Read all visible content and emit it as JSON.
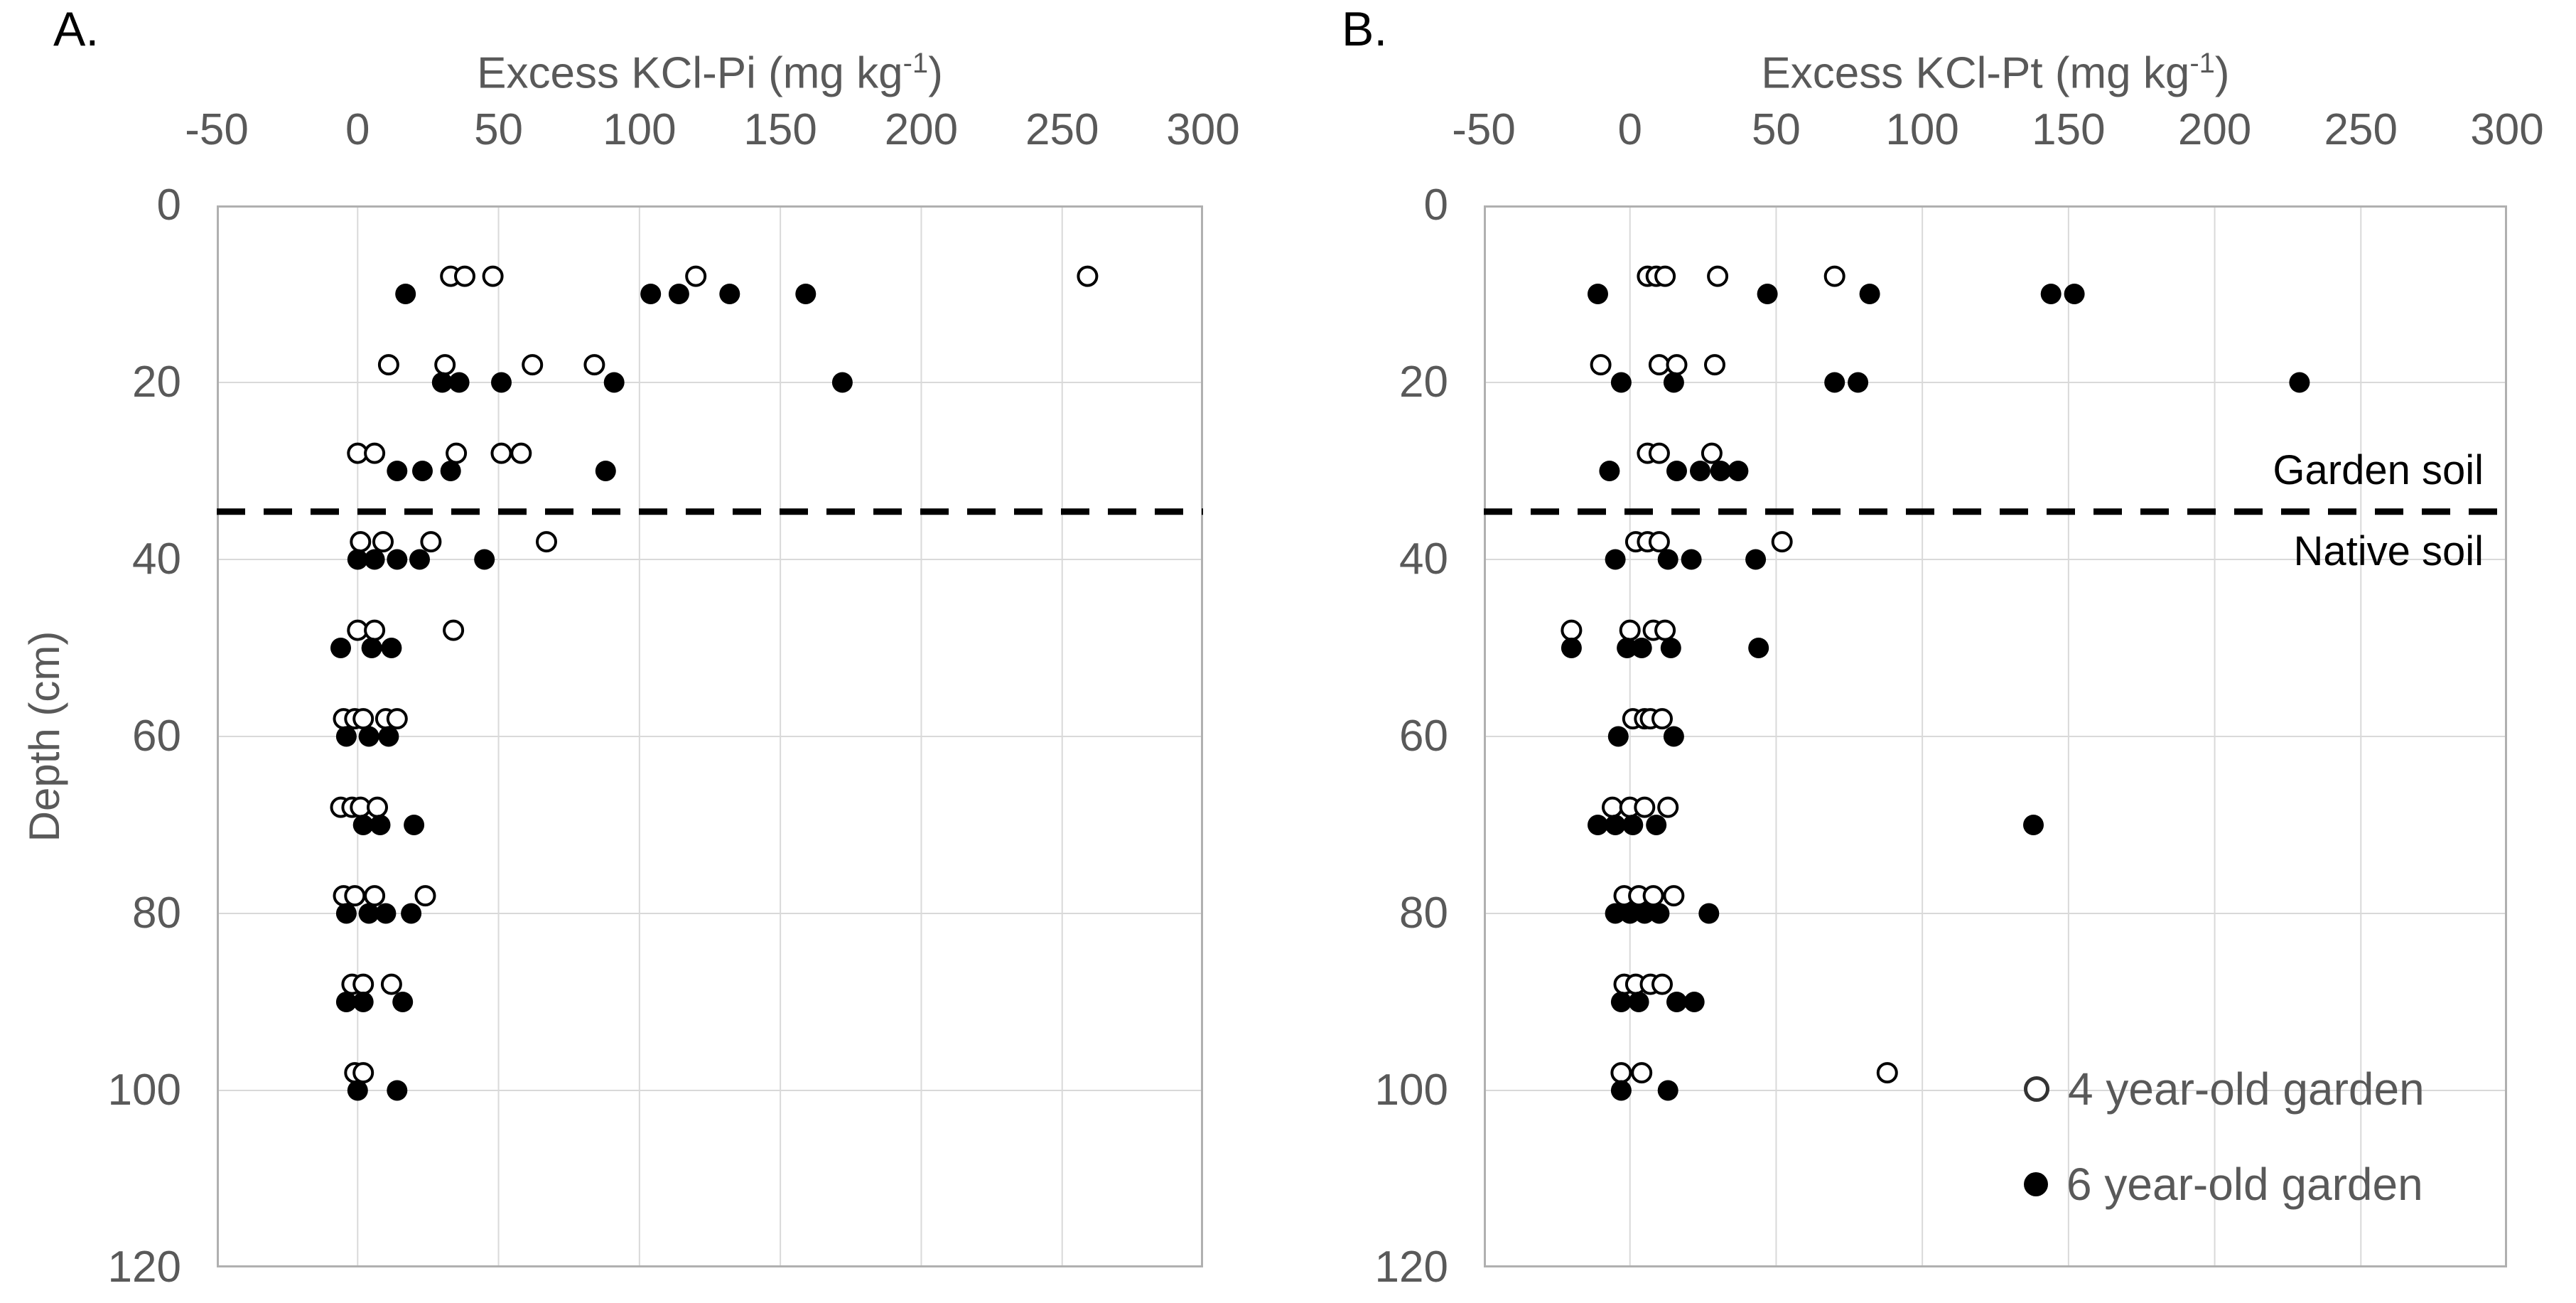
{
  "figure_type": "two-panel depth-profile scatter plot",
  "colors": {
    "background": "#ffffff",
    "text_gray": "#595959",
    "text_black": "#000000",
    "gridline": "#d9d9d9",
    "plot_border": "#b0b0b0",
    "marker": "#000000",
    "boundary_line": "#000000"
  },
  "y_axis_label": "Depth (cm)",
  "panels": [
    {
      "letter": "A.",
      "title_text": "Excess KCl-Pi (mg kg",
      "title_sup": "-1",
      "title_close": ")"
    },
    {
      "letter": "B.",
      "title_text": "Excess KCl-Pt (mg kg",
      "title_sup": "-1",
      "title_close": ")"
    }
  ],
  "boundary_labels": {
    "above": "Garden soil",
    "below": "Native soil"
  },
  "legend": {
    "items": [
      {
        "label": "4 year-old garden",
        "marker": "open"
      },
      {
        "label": "6 year-old garden",
        "marker": "filled"
      }
    ]
  },
  "chart_data": [
    {
      "type": "scatter",
      "panel": "A",
      "title": "Excess KCl-Pi (mg kg-1)",
      "xlabel": "Excess KCl-Pi (mg kg-1)",
      "ylabel": "Depth (cm)",
      "xlim": [
        -50,
        300
      ],
      "ylim": [
        0,
        120
      ],
      "xticks": [
        -50,
        0,
        50,
        100,
        150,
        200,
        250,
        300
      ],
      "yticks": [
        0,
        20,
        40,
        60,
        80,
        100,
        120
      ],
      "grid": true,
      "boundary_depth_cm": 34.6,
      "series": [
        {
          "name": "4 year-old garden",
          "marker": "open",
          "points": [
            [
              33,
              8
            ],
            [
              38,
              8
            ],
            [
              48,
              8
            ],
            [
              120,
              8
            ],
            [
              259,
              8
            ],
            [
              11,
              18
            ],
            [
              31,
              18
            ],
            [
              62,
              18
            ],
            [
              84,
              18
            ],
            [
              0,
              28
            ],
            [
              6,
              28
            ],
            [
              35,
              28
            ],
            [
              51,
              28
            ],
            [
              58,
              28
            ],
            [
              1,
              38
            ],
            [
              9,
              38
            ],
            [
              26,
              38
            ],
            [
              67,
              38
            ],
            [
              0,
              48
            ],
            [
              6,
              48
            ],
            [
              34,
              48
            ],
            [
              -5,
              58
            ],
            [
              -1,
              58
            ],
            [
              2,
              58
            ],
            [
              10,
              58
            ],
            [
              14,
              58
            ],
            [
              -6,
              68
            ],
            [
              -2,
              68
            ],
            [
              1,
              68
            ],
            [
              7,
              68
            ],
            [
              -5,
              78
            ],
            [
              -1,
              78
            ],
            [
              6,
              78
            ],
            [
              24,
              78
            ],
            [
              -2,
              88
            ],
            [
              2,
              88
            ],
            [
              12,
              88
            ],
            [
              -1,
              98
            ],
            [
              2,
              98
            ]
          ]
        },
        {
          "name": "6 year-old garden",
          "marker": "filled",
          "points": [
            [
              17,
              10
            ],
            [
              104,
              10
            ],
            [
              114,
              10
            ],
            [
              132,
              10
            ],
            [
              159,
              10
            ],
            [
              30,
              20
            ],
            [
              36,
              20
            ],
            [
              51,
              20
            ],
            [
              91,
              20
            ],
            [
              172,
              20
            ],
            [
              14,
              30
            ],
            [
              23,
              30
            ],
            [
              33,
              30
            ],
            [
              88,
              30
            ],
            [
              0,
              40
            ],
            [
              6,
              40
            ],
            [
              14,
              40
            ],
            [
              22,
              40
            ],
            [
              45,
              40
            ],
            [
              -6,
              50
            ],
            [
              5,
              50
            ],
            [
              12,
              50
            ],
            [
              -4,
              60
            ],
            [
              4,
              60
            ],
            [
              11,
              60
            ],
            [
              2,
              70
            ],
            [
              8,
              70
            ],
            [
              20,
              70
            ],
            [
              -4,
              80
            ],
            [
              4,
              80
            ],
            [
              10,
              80
            ],
            [
              19,
              80
            ],
            [
              -4,
              90
            ],
            [
              2,
              90
            ],
            [
              16,
              90
            ],
            [
              0,
              100
            ],
            [
              14,
              100
            ]
          ]
        }
      ]
    },
    {
      "type": "scatter",
      "panel": "B",
      "title": "Excess KCl-Pt (mg kg-1)",
      "xlabel": "Excess KCl-Pt (mg kg-1)",
      "ylabel": "Depth (cm)",
      "xlim": [
        -50,
        300
      ],
      "ylim": [
        0,
        120
      ],
      "xticks": [
        -50,
        0,
        50,
        100,
        150,
        200,
        250,
        300
      ],
      "yticks": [
        0,
        20,
        40,
        60,
        80,
        100,
        120
      ],
      "grid": true,
      "boundary_depth_cm": 34.6,
      "series": [
        {
          "name": "4 year-old garden",
          "marker": "open",
          "points": [
            [
              6,
              8
            ],
            [
              9,
              8
            ],
            [
              12,
              8
            ],
            [
              30,
              8
            ],
            [
              70,
              8
            ],
            [
              -10,
              18
            ],
            [
              10,
              18
            ],
            [
              16,
              18
            ],
            [
              29,
              18
            ],
            [
              6,
              28
            ],
            [
              10,
              28
            ],
            [
              28,
              28
            ],
            [
              2,
              38
            ],
            [
              6,
              38
            ],
            [
              10,
              38
            ],
            [
              52,
              38
            ],
            [
              -20,
              48
            ],
            [
              0,
              48
            ],
            [
              8,
              48
            ],
            [
              12,
              48
            ],
            [
              1,
              58
            ],
            [
              5,
              58
            ],
            [
              7,
              58
            ],
            [
              11,
              58
            ],
            [
              -6,
              68
            ],
            [
              0,
              68
            ],
            [
              5,
              68
            ],
            [
              13,
              68
            ],
            [
              -2,
              78
            ],
            [
              3,
              78
            ],
            [
              8,
              78
            ],
            [
              15,
              78
            ],
            [
              -2,
              88
            ],
            [
              2,
              88
            ],
            [
              7,
              88
            ],
            [
              11,
              88
            ],
            [
              -3,
              98
            ],
            [
              4,
              98
            ],
            [
              88,
              98
            ]
          ]
        },
        {
          "name": "6 year-old garden",
          "marker": "filled",
          "points": [
            [
              -11,
              10
            ],
            [
              47,
              10
            ],
            [
              82,
              10
            ],
            [
              144,
              10
            ],
            [
              152,
              10
            ],
            [
              -3,
              20
            ],
            [
              15,
              20
            ],
            [
              70,
              20
            ],
            [
              78,
              20
            ],
            [
              229,
              20
            ],
            [
              -7,
              30
            ],
            [
              16,
              30
            ],
            [
              24,
              30
            ],
            [
              31,
              30
            ],
            [
              37,
              30
            ],
            [
              -5,
              40
            ],
            [
              13,
              40
            ],
            [
              21,
              40
            ],
            [
              43,
              40
            ],
            [
              -20,
              50
            ],
            [
              -1,
              50
            ],
            [
              4,
              50
            ],
            [
              14,
              50
            ],
            [
              44,
              50
            ],
            [
              -4,
              60
            ],
            [
              15,
              60
            ],
            [
              -11,
              70
            ],
            [
              -5,
              70
            ],
            [
              1,
              70
            ],
            [
              9,
              70
            ],
            [
              138,
              70
            ],
            [
              -5,
              80
            ],
            [
              0,
              80
            ],
            [
              5,
              80
            ],
            [
              10,
              80
            ],
            [
              27,
              80
            ],
            [
              -3,
              90
            ],
            [
              3,
              90
            ],
            [
              16,
              90
            ],
            [
              22,
              90
            ],
            [
              -3,
              100
            ],
            [
              13,
              100
            ]
          ]
        }
      ]
    }
  ]
}
